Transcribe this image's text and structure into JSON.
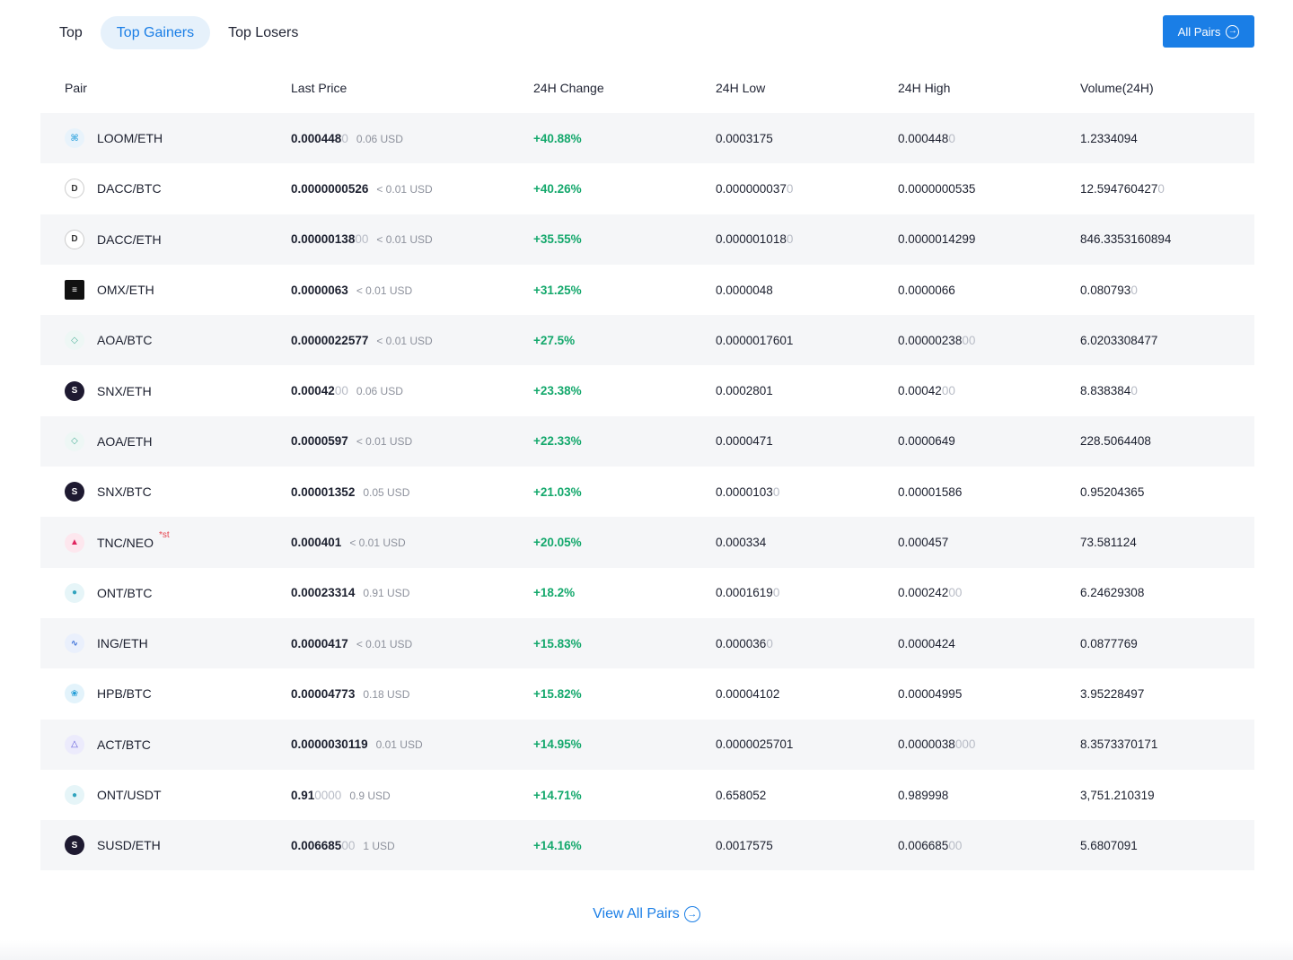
{
  "tabs": [
    {
      "label": "Top",
      "active": false
    },
    {
      "label": "Top Gainers",
      "active": true
    },
    {
      "label": "Top Losers",
      "active": false
    }
  ],
  "all_pairs_button": {
    "label": "All Pairs",
    "icon": "arrow-right-circle-icon"
  },
  "columns": [
    "Pair",
    "Last Price",
    "24H Change",
    "24H Low",
    "24H High",
    "Volume(24H)"
  ],
  "rows": [
    {
      "pair": "LOOM/ETH",
      "icon": "loom-icon",
      "price": "0.000448",
      "price_trail": "0",
      "usd": "0.06 USD",
      "change": "+40.88%",
      "low": "0.0003175",
      "low_trail": "",
      "high": "0.000448",
      "high_trail": "0",
      "volume": "1.2334094",
      "volume_trail": "",
      "tag": ""
    },
    {
      "pair": "DACC/BTC",
      "icon": "dacc-icon",
      "price": "0.0000000526",
      "price_trail": "",
      "usd": "< 0.01 USD",
      "change": "+40.26%",
      "low": "0.000000037",
      "low_trail": "0",
      "high": "0.0000000535",
      "high_trail": "",
      "volume": "12.594760427",
      "volume_trail": "0",
      "tag": ""
    },
    {
      "pair": "DACC/ETH",
      "icon": "dacc-icon",
      "price": "0.00000138",
      "price_trail": "00",
      "usd": "< 0.01 USD",
      "change": "+35.55%",
      "low": "0.000001018",
      "low_trail": "0",
      "high": "0.0000014299",
      "high_trail": "",
      "volume": "846.3353160894",
      "volume_trail": "",
      "tag": ""
    },
    {
      "pair": "OMX/ETH",
      "icon": "omx-icon",
      "price": "0.0000063",
      "price_trail": "",
      "usd": "< 0.01 USD",
      "change": "+31.25%",
      "low": "0.0000048",
      "low_trail": "",
      "high": "0.0000066",
      "high_trail": "",
      "volume": "0.080793",
      "volume_trail": "0",
      "tag": ""
    },
    {
      "pair": "AOA/BTC",
      "icon": "aoa-icon",
      "price": "0.0000022577",
      "price_trail": "",
      "usd": "< 0.01 USD",
      "change": "+27.5%",
      "low": "0.0000017601",
      "low_trail": "",
      "high": "0.00000238",
      "high_trail": "00",
      "volume": "6.0203308477",
      "volume_trail": "",
      "tag": ""
    },
    {
      "pair": "SNX/ETH",
      "icon": "snx-icon",
      "price": "0.00042",
      "price_trail": "00",
      "usd": "0.06 USD",
      "change": "+23.38%",
      "low": "0.0002801",
      "low_trail": "",
      "high": "0.00042",
      "high_trail": "00",
      "volume": "8.838384",
      "volume_trail": "0",
      "tag": ""
    },
    {
      "pair": "AOA/ETH",
      "icon": "aoa-icon",
      "price": "0.0000597",
      "price_trail": "",
      "usd": "< 0.01 USD",
      "change": "+22.33%",
      "low": "0.0000471",
      "low_trail": "",
      "high": "0.0000649",
      "high_trail": "",
      "volume": "228.5064408",
      "volume_trail": "",
      "tag": ""
    },
    {
      "pair": "SNX/BTC",
      "icon": "snx-icon",
      "price": "0.00001352",
      "price_trail": "",
      "usd": "0.05 USD",
      "change": "+21.03%",
      "low": "0.0000103",
      "low_trail": "0",
      "high": "0.00001586",
      "high_trail": "",
      "volume": "0.95204365",
      "volume_trail": "",
      "tag": ""
    },
    {
      "pair": "TNC/NEO",
      "icon": "tnc-icon",
      "price": "0.000401",
      "price_trail": "",
      "usd": "< 0.01 USD",
      "change": "+20.05%",
      "low": "0.000334",
      "low_trail": "",
      "high": "0.000457",
      "high_trail": "",
      "volume": "73.581124",
      "volume_trail": "",
      "tag": "*st"
    },
    {
      "pair": "ONT/BTC",
      "icon": "ont-icon",
      "price": "0.00023314",
      "price_trail": "",
      "usd": "0.91 USD",
      "change": "+18.2%",
      "low": "0.0001619",
      "low_trail": "0",
      "high": "0.000242",
      "high_trail": "00",
      "volume": "6.24629308",
      "volume_trail": "",
      "tag": ""
    },
    {
      "pair": "ING/ETH",
      "icon": "ing-icon",
      "price": "0.0000417",
      "price_trail": "",
      "usd": "< 0.01 USD",
      "change": "+15.83%",
      "low": "0.000036",
      "low_trail": "0",
      "high": "0.0000424",
      "high_trail": "",
      "volume": "0.0877769",
      "volume_trail": "",
      "tag": ""
    },
    {
      "pair": "HPB/BTC",
      "icon": "hpb-icon",
      "price": "0.00004773",
      "price_trail": "",
      "usd": "0.18 USD",
      "change": "+15.82%",
      "low": "0.00004102",
      "low_trail": "",
      "high": "0.00004995",
      "high_trail": "",
      "volume": "3.95228497",
      "volume_trail": "",
      "tag": ""
    },
    {
      "pair": "ACT/BTC",
      "icon": "act-icon",
      "price": "0.0000030119",
      "price_trail": "",
      "usd": "0.01 USD",
      "change": "+14.95%",
      "low": "0.0000025701",
      "low_trail": "",
      "high": "0.0000038",
      "high_trail": "000",
      "volume": "8.3573370171",
      "volume_trail": "",
      "tag": ""
    },
    {
      "pair": "ONT/USDT",
      "icon": "ont-icon",
      "price": "0.91",
      "price_trail": "0000",
      "usd": "0.9 USD",
      "change": "+14.71%",
      "low": "0.658052",
      "low_trail": "",
      "high": "0.989998",
      "high_trail": "",
      "volume": "3,751.210319",
      "volume_trail": "",
      "tag": ""
    },
    {
      "pair": "SUSD/ETH",
      "icon": "susd-icon",
      "price": "0.006685",
      "price_trail": "00",
      "usd": "1 USD",
      "change": "+14.16%",
      "low": "0.0017575",
      "low_trail": "",
      "high": "0.006685",
      "high_trail": "00",
      "volume": "5.6807091",
      "volume_trail": "",
      "tag": ""
    }
  ],
  "view_all": {
    "label": "View All Pairs",
    "icon": "arrow-right-circle-icon"
  },
  "colors": {
    "accent": "#1a7ee6",
    "positive": "#14a86c",
    "tag": "#e5414b",
    "row_stripe": "#f5f6f8"
  }
}
